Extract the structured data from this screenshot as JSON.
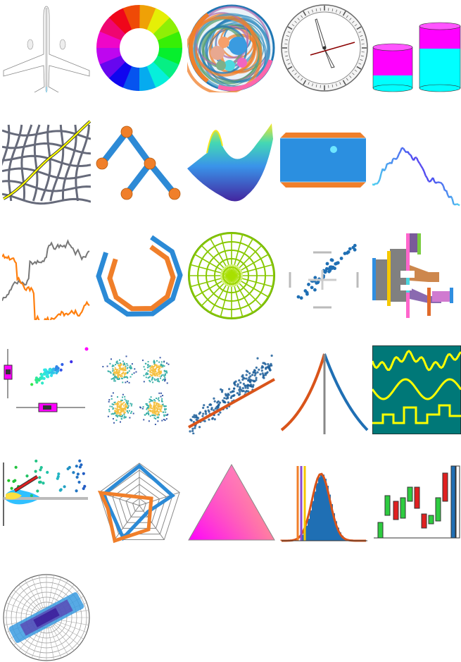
{
  "gallery": {
    "tiles": [
      {
        "name": "airplane-icon",
        "kind": "airplane"
      },
      {
        "name": "color-wheel-icon",
        "kind": "colorwheel"
      },
      {
        "name": "circle-packing-icon",
        "kind": "circlepack"
      },
      {
        "name": "clock-icon",
        "kind": "clock"
      },
      {
        "name": "cylinders-icon",
        "kind": "cylinders"
      },
      {
        "name": "warped-grid-icon",
        "kind": "grid"
      },
      {
        "name": "tree-graph-icon",
        "kind": "tree"
      },
      {
        "name": "surface-plot-icon",
        "kind": "surface"
      },
      {
        "name": "framed-panel-icon",
        "kind": "panel"
      },
      {
        "name": "gradient-line-icon",
        "kind": "gradline"
      },
      {
        "name": "two-line-series-icon",
        "kind": "twoline"
      },
      {
        "name": "ring-outlines-icon",
        "kind": "rings"
      },
      {
        "name": "polar-grid-icon",
        "kind": "polargrid"
      },
      {
        "name": "scatter-crosshair-icon",
        "kind": "scattercross"
      },
      {
        "name": "sankey-flow-icon",
        "kind": "sankey"
      },
      {
        "name": "scatter-marginal-box-icon",
        "kind": "marginal"
      },
      {
        "name": "density-clusters-icon",
        "kind": "clusters"
      },
      {
        "name": "scatter-regression-icon",
        "kind": "regression"
      },
      {
        "name": "peak-curve-icon",
        "kind": "peak"
      },
      {
        "name": "signal-waves-icon",
        "kind": "signals"
      },
      {
        "name": "violin-scatter-icon",
        "kind": "violin"
      },
      {
        "name": "radar-chart-icon",
        "kind": "radar"
      },
      {
        "name": "ternary-gradient-icon",
        "kind": "ternary"
      },
      {
        "name": "histogram-icon",
        "kind": "histogram"
      },
      {
        "name": "candlestick-icon",
        "kind": "candles"
      },
      {
        "name": "polar-heatmap-icon",
        "kind": "polarheat"
      }
    ],
    "colors": {
      "blue": "#1f77b4",
      "orange": "#f07f2a",
      "magenta": "#ff00ff",
      "cyan": "#00ffff",
      "green": "#2ecc40",
      "red": "#e02020",
      "olive": "#5a8a00",
      "yellow": "#ffff00",
      "teal": "#007878"
    }
  }
}
